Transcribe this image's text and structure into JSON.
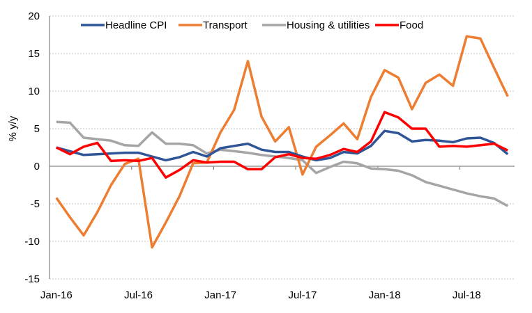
{
  "chart_data": {
    "type": "line",
    "title": "",
    "xlabel": "",
    "ylabel": "% y/y",
    "ylim": [
      -15,
      20
    ],
    "yticks": [
      20,
      15,
      10,
      5,
      0,
      -5,
      -10,
      -15
    ],
    "grid": true,
    "legend_position": "top",
    "x": [
      "Jan-16",
      "Feb-16",
      "Mar-16",
      "Apr-16",
      "May-16",
      "Jun-16",
      "Jul-16",
      "Aug-16",
      "Sep-16",
      "Oct-16",
      "Nov-16",
      "Dec-16",
      "Jan-17",
      "Feb-17",
      "Mar-17",
      "Apr-17",
      "May-17",
      "Jun-17",
      "Jul-17",
      "Aug-17",
      "Sep-17",
      "Oct-17",
      "Nov-17",
      "Dec-17",
      "Jan-18",
      "Feb-18",
      "Mar-18",
      "Apr-18",
      "May-18",
      "Jun-18",
      "Jul-18",
      "Aug-18",
      "Sep-18",
      "Oct-18"
    ],
    "xtick_labels": [
      "Jan-16",
      "Jul-16",
      "Jan-17",
      "Jul-17",
      "Jan-18",
      "Jul-18"
    ],
    "series": [
      {
        "name": "Headline CPI",
        "color": "#2F5597",
        "values": [
          2.5,
          2.0,
          1.5,
          1.6,
          1.7,
          1.8,
          1.8,
          1.3,
          0.8,
          1.2,
          1.9,
          1.3,
          2.4,
          2.7,
          3.0,
          2.2,
          1.9,
          1.9,
          1.3,
          0.8,
          1.1,
          1.9,
          1.7,
          2.7,
          4.7,
          4.4,
          3.3,
          3.5,
          3.4,
          3.2,
          3.7,
          3.8,
          3.1,
          1.6
        ]
      },
      {
        "name": "Transport",
        "color": "#ED7D31",
        "values": [
          -4.2,
          -6.8,
          -9.2,
          -6.1,
          -2.5,
          0.3,
          1.0,
          -10.8,
          -7.5,
          -4.0,
          0.4,
          0.5,
          4.5,
          7.5,
          14.0,
          6.6,
          3.3,
          5.2,
          -1.1,
          2.6,
          4.1,
          5.7,
          3.6,
          9.2,
          12.8,
          11.8,
          7.6,
          11.1,
          12.2,
          10.7,
          17.3,
          17.0,
          13.1,
          9.3
        ]
      },
      {
        "name": "Housing & utilities",
        "color": "#A5A5A5",
        "values": [
          5.9,
          5.8,
          3.8,
          3.6,
          3.4,
          2.8,
          2.7,
          4.5,
          3.0,
          3.0,
          2.8,
          1.7,
          2.2,
          2.0,
          1.8,
          1.5,
          1.3,
          1.1,
          0.8,
          -0.9,
          -0.1,
          0.6,
          0.4,
          -0.3,
          -0.4,
          -0.6,
          -1.2,
          -2.1,
          -2.6,
          -3.1,
          -3.6,
          -4.0,
          -4.3,
          -5.3
        ]
      },
      {
        "name": "Food",
        "color": "#FF0000",
        "values": [
          2.5,
          1.6,
          2.6,
          3.1,
          0.7,
          0.8,
          0.7,
          1.1,
          -1.5,
          -0.5,
          0.8,
          0.5,
          0.6,
          0.6,
          -0.4,
          -0.4,
          1.2,
          1.6,
          1.1,
          1.0,
          1.5,
          2.3,
          1.9,
          3.3,
          7.2,
          6.5,
          5.0,
          5.0,
          2.6,
          2.7,
          2.6,
          2.8,
          3.0,
          2.1
        ]
      }
    ]
  }
}
